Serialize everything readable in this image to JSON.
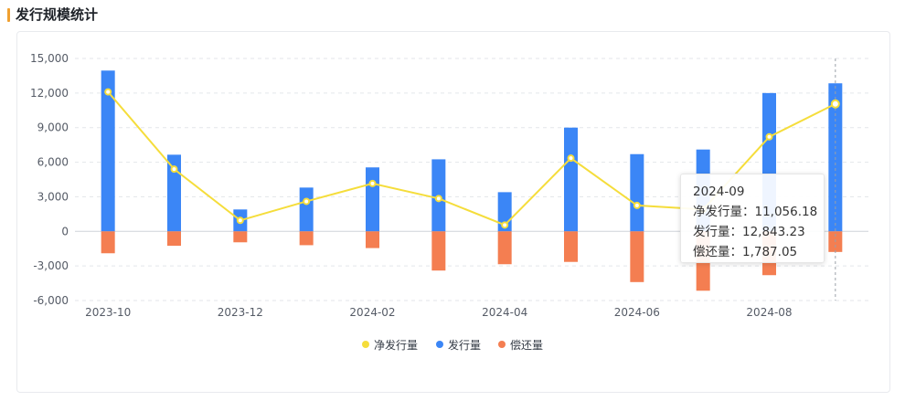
{
  "header": {
    "title": "发行规模统计"
  },
  "colors": {
    "net": "#f5dd3b",
    "issue": "#3b86f6",
    "repay": "#f47e51",
    "accent": "#f0a030"
  },
  "chart_data": {
    "type": "bar",
    "categories": [
      "2023-10",
      "2023-11",
      "2023-12",
      "2024-01",
      "2024-02",
      "2024-03",
      "2024-04",
      "2024-05",
      "2024-06",
      "2024-07",
      "2024-08",
      "2024-09"
    ],
    "x_tick_labels": [
      "2023-10",
      "2023-12",
      "2024-02",
      "2024-04",
      "2024-06",
      "2024-08"
    ],
    "y_tick_labels": [
      "15,000",
      "12,000",
      "9,000",
      "6,000",
      "3,000",
      "0",
      "-3,000",
      "-6,000"
    ],
    "ylim": [
      -6000,
      15000
    ],
    "grid": true,
    "legend_position": "bottom",
    "series": [
      {
        "name": "净发行量",
        "type": "line",
        "values": [
          12100,
          5400,
          950,
          2600,
          4150,
          2850,
          550,
          6350,
          2250,
          1900,
          8200,
          11056.18
        ]
      },
      {
        "name": "发行量",
        "type": "bar",
        "values": [
          13950,
          6650,
          1900,
          3800,
          5550,
          6250,
          3400,
          9000,
          6700,
          7100,
          12000,
          12843.23
        ]
      },
      {
        "name": "偿还量",
        "type": "bar",
        "values": [
          -1900,
          -1250,
          -950,
          -1200,
          -1450,
          -3400,
          -2850,
          -2650,
          -4400,
          -5150,
          -3800,
          -1787.05
        ]
      }
    ]
  },
  "tooltip": {
    "date": "2024-09",
    "rows": [
      {
        "label": "净发行量：",
        "value": "11,056.18"
      },
      {
        "label": "发行量：",
        "value": "12,843.23"
      },
      {
        "label": "偿还量：",
        "value": "1,787.05"
      }
    ]
  }
}
